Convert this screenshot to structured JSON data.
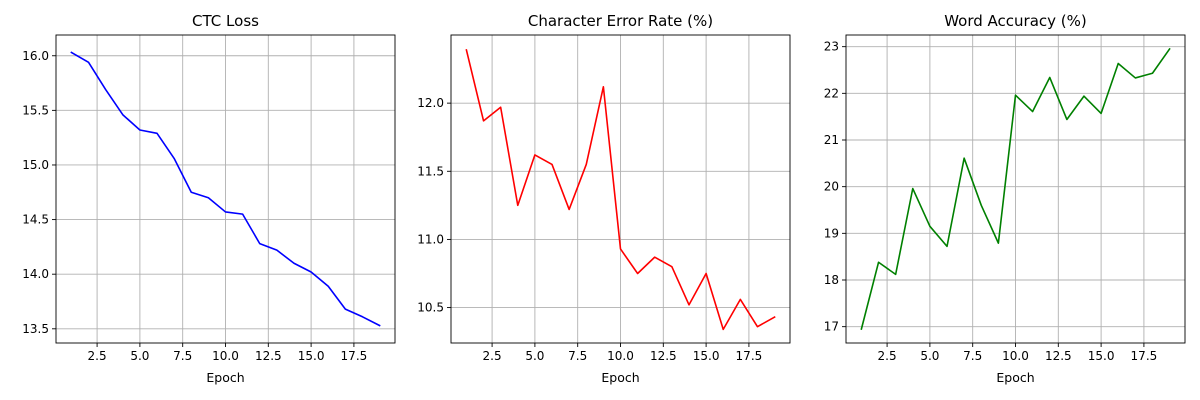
{
  "chart_data": [
    {
      "type": "line",
      "title": "CTC Loss",
      "xlabel": "Epoch",
      "ylabel": "",
      "xlim": [
        0.1,
        19.9
      ],
      "ylim": [
        13.37,
        16.19
      ],
      "grid": true,
      "xticks": [
        2.5,
        5.0,
        7.5,
        10.0,
        12.5,
        15.0,
        17.5
      ],
      "xtick_labels": [
        "2.5",
        "5.0",
        "7.5",
        "10.0",
        "12.5",
        "15.0",
        "17.5"
      ],
      "yticks": [
        13.5,
        14.0,
        14.5,
        15.0,
        15.5,
        16.0
      ],
      "ytick_labels": [
        "13.5",
        "14.0",
        "14.5",
        "15.0",
        "15.5",
        "16.0"
      ],
      "series": [
        {
          "color": "#0000ff",
          "x": [
            1,
            2,
            3,
            4,
            5,
            6,
            7,
            8,
            9,
            10,
            11,
            12,
            13,
            14,
            15,
            16,
            17,
            18,
            19
          ],
          "values": [
            16.03,
            15.94,
            15.69,
            15.46,
            15.32,
            15.29,
            15.06,
            14.75,
            14.7,
            14.57,
            14.55,
            14.28,
            14.22,
            14.1,
            14.02,
            13.89,
            13.68,
            13.61,
            13.53
          ]
        }
      ]
    },
    {
      "type": "line",
      "title": "Character Error Rate (%)",
      "xlabel": "Epoch",
      "ylabel": "",
      "xlim": [
        0.1,
        19.9
      ],
      "ylim": [
        10.24,
        12.5
      ],
      "grid": true,
      "xticks": [
        2.5,
        5.0,
        7.5,
        10.0,
        12.5,
        15.0,
        17.5
      ],
      "xtick_labels": [
        "2.5",
        "5.0",
        "7.5",
        "10.0",
        "12.5",
        "15.0",
        "17.5"
      ],
      "yticks": [
        10.5,
        11.0,
        11.5,
        12.0
      ],
      "ytick_labels": [
        "10.5",
        "11.0",
        "11.5",
        "12.0"
      ],
      "series": [
        {
          "color": "#ff0000",
          "x": [
            1,
            2,
            3,
            4,
            5,
            6,
            7,
            8,
            9,
            10,
            11,
            12,
            13,
            14,
            15,
            16,
            17,
            18,
            19
          ],
          "values": [
            12.39,
            11.87,
            11.97,
            11.25,
            11.62,
            11.55,
            11.22,
            11.55,
            12.12,
            10.93,
            10.75,
            10.87,
            10.8,
            10.52,
            10.75,
            10.34,
            10.56,
            10.36,
            10.43
          ]
        }
      ]
    },
    {
      "type": "line",
      "title": "Word Accuracy (%)",
      "xlabel": "Epoch",
      "ylabel": "",
      "xlim": [
        0.1,
        19.9
      ],
      "ylim": [
        16.65,
        23.25
      ],
      "grid": true,
      "xticks": [
        2.5,
        5.0,
        7.5,
        10.0,
        12.5,
        15.0,
        17.5
      ],
      "xtick_labels": [
        "2.5",
        "5.0",
        "7.5",
        "10.0",
        "12.5",
        "15.0",
        "17.5"
      ],
      "yticks": [
        17,
        18,
        19,
        20,
        21,
        22,
        23
      ],
      "ytick_labels": [
        "17",
        "18",
        "19",
        "20",
        "21",
        "22",
        "23"
      ],
      "series": [
        {
          "color": "#008000",
          "x": [
            1,
            2,
            3,
            4,
            5,
            6,
            7,
            8,
            9,
            10,
            11,
            12,
            13,
            14,
            15,
            16,
            17,
            18,
            19
          ],
          "values": [
            16.95,
            18.38,
            18.12,
            19.96,
            19.15,
            18.72,
            20.61,
            19.6,
            18.79,
            21.96,
            21.61,
            22.34,
            21.44,
            21.94,
            21.57,
            22.64,
            22.33,
            22.43,
            22.95
          ]
        }
      ]
    }
  ]
}
